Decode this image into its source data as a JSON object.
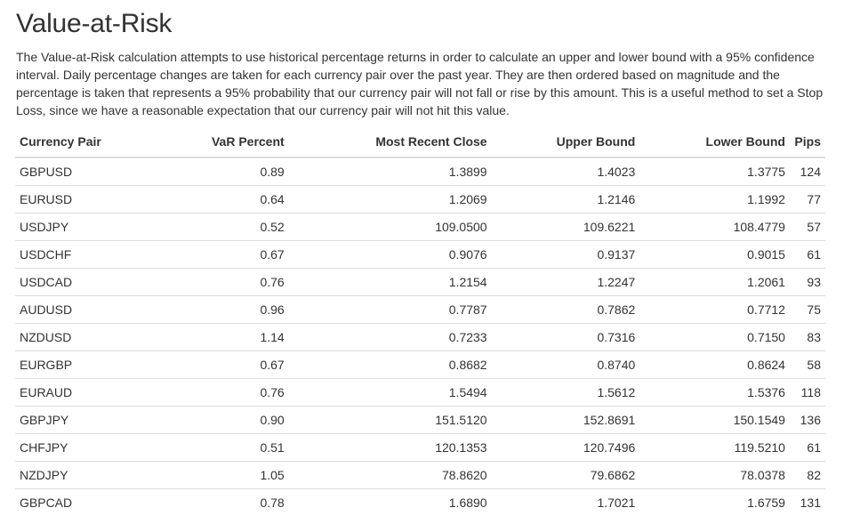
{
  "page": {
    "title": "Value-at-Risk",
    "description": "The Value-at-Risk calculation attempts to use historical percentage returns in order to calculate an upper and lower bound with a 95% confidence interval. Daily percentage changes are taken for each currency pair over the past year. They are then ordered based on magnitude and the percentage is taken that represents a 95% probability that our currency pair will not fall or rise by this amount. This is a useful method to set a Stop Loss, since we have a reasonable expectation that our currency pair will not hit this value."
  },
  "table": {
    "columns": [
      "Currency Pair",
      "VaR Percent",
      "Most Recent Close",
      "Upper Bound",
      "Lower Bound",
      "Pips"
    ],
    "rows": [
      [
        "GBPUSD",
        "0.89",
        "1.3899",
        "1.4023",
        "1.3775",
        "124"
      ],
      [
        "EURUSD",
        "0.64",
        "1.2069",
        "1.2146",
        "1.1992",
        "77"
      ],
      [
        "USDJPY",
        "0.52",
        "109.0500",
        "109.6221",
        "108.4779",
        "57"
      ],
      [
        "USDCHF",
        "0.67",
        "0.9076",
        "0.9137",
        "0.9015",
        "61"
      ],
      [
        "USDCAD",
        "0.76",
        "1.2154",
        "1.2247",
        "1.2061",
        "93"
      ],
      [
        "AUDUSD",
        "0.96",
        "0.7787",
        "0.7862",
        "0.7712",
        "75"
      ],
      [
        "NZDUSD",
        "1.14",
        "0.7233",
        "0.7316",
        "0.7150",
        "83"
      ],
      [
        "EURGBP",
        "0.67",
        "0.8682",
        "0.8740",
        "0.8624",
        "58"
      ],
      [
        "EURAUD",
        "0.76",
        "1.5494",
        "1.5612",
        "1.5376",
        "118"
      ],
      [
        "GBPJPY",
        "0.90",
        "151.5120",
        "152.8691",
        "150.1549",
        "136"
      ],
      [
        "CHFJPY",
        "0.51",
        "120.1353",
        "120.7496",
        "119.5210",
        "61"
      ],
      [
        "NZDJPY",
        "1.05",
        "78.8620",
        "79.6862",
        "78.0378",
        "82"
      ],
      [
        "GBPCAD",
        "0.78",
        "1.6890",
        "1.7021",
        "1.6759",
        "131"
      ]
    ]
  },
  "colors": {
    "text": "#333333",
    "border": "#dddddd",
    "background": "#ffffff"
  }
}
